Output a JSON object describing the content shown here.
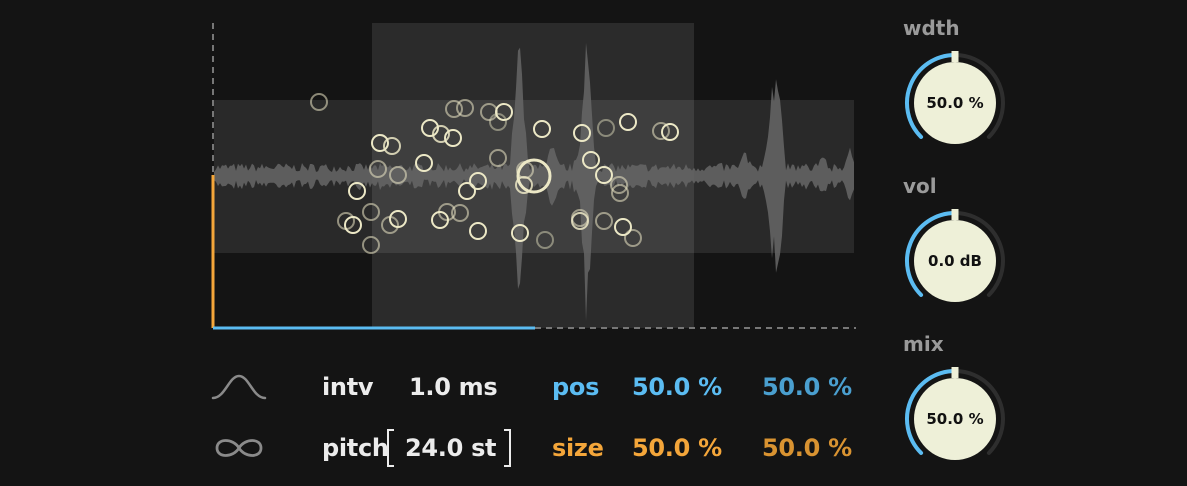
{
  "colors": {
    "background": "#141414",
    "blue": "#5bbcf2",
    "blue_dim": "#4a9fcf",
    "orange": "#f4a63a",
    "orange_dim": "#d99331",
    "knob_face": "#eef0d8",
    "grain": "#ece8c6"
  },
  "icons": {
    "envelope": "bell-curve-icon",
    "loop": "infinity-icon"
  },
  "params": {
    "interval": {
      "label": "intv",
      "value": "1.0 ms"
    },
    "pitch": {
      "label": "pitch",
      "value": "24.0 st"
    },
    "position": {
      "label": "pos",
      "value_a": "50.0 %",
      "value_b": "50.0 %"
    },
    "size": {
      "label": "size",
      "value_a": "50.0 %",
      "value_b": "50.0 %"
    }
  },
  "knobs": [
    {
      "label": "wdth",
      "value": "50.0 %",
      "level": 0.5
    },
    {
      "label": "vol",
      "value": "0.0 dB",
      "level": 0.5
    },
    {
      "label": "mix",
      "value": "50.0 %",
      "level": 0.5
    }
  ],
  "display": {
    "position_fraction": 0.5,
    "size_fraction": 0.5,
    "grain_count": 48
  }
}
